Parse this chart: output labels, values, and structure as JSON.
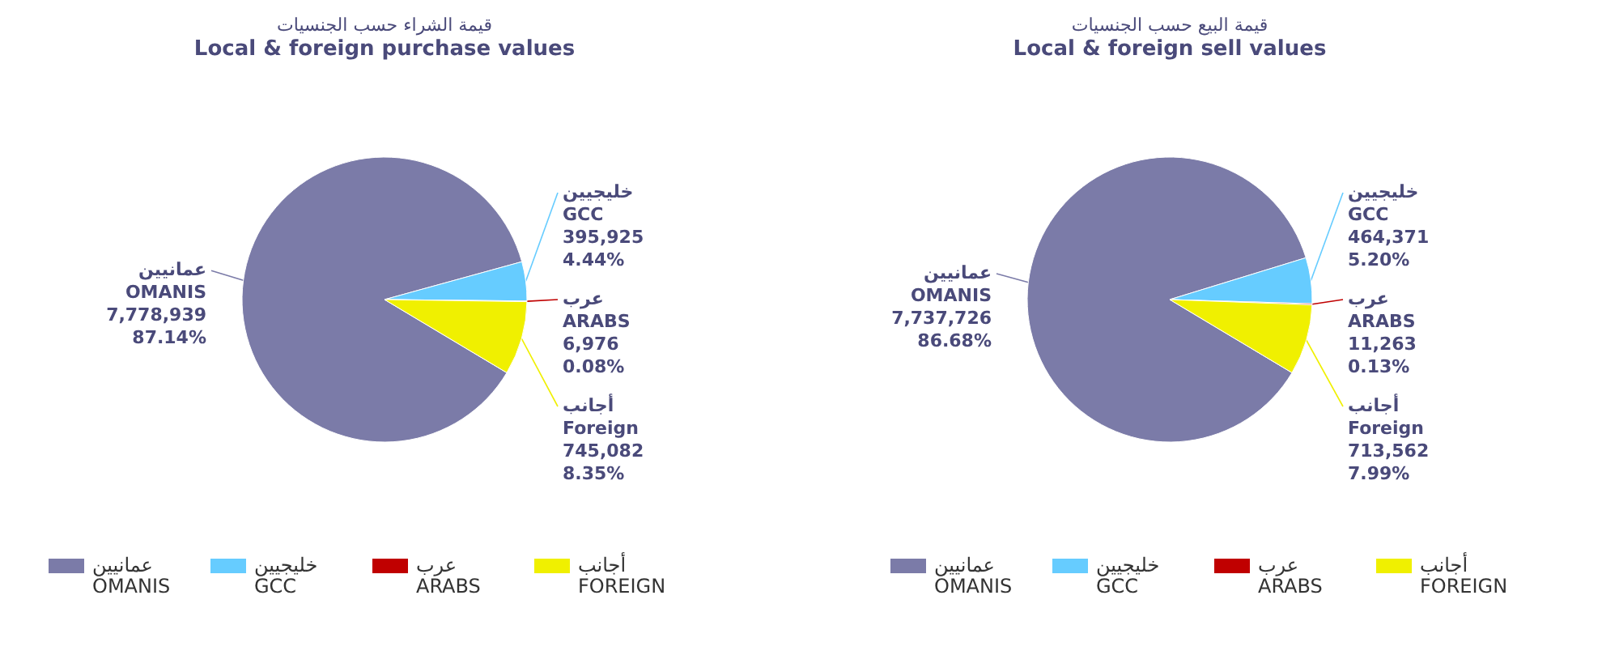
{
  "chart_data": [
    {
      "type": "pie",
      "title": "قيمة الشراء حسب الجنسيات",
      "subtitle": "Local & foreign purchase values",
      "categories": [
        "عمانيين\nOMANIS",
        "خليجيين\nGCC",
        "عرب\nARABS",
        "أجانب\nFOREIGN"
      ],
      "values": [
        7778939,
        395925,
        6976,
        745082
      ],
      "colors": [
        "#7b7ba8",
        "#66ccff",
        "#c00000",
        "#f0f000"
      ],
      "value_labels": [
        "عمانيين\nOMANIS\n7,778,939\n87.14%",
        "خليجيين\nGCC\n395,925\n4.44%",
        "عرب\nARABS\n6,976\n0.08%",
        "أجانب\nForeign\n745,082\n8.35%"
      ],
      "legend": "bottom left"
    },
    {
      "type": "pie",
      "title": "قيمة البيع حسب الجنسيات",
      "subtitle": "Local & foreign sell values",
      "categories": [
        "عمانيين\nOMANIS",
        "خليجيين\nGCC",
        "عرب\nARABS",
        "أجانب\nFOREIGN"
      ],
      "values": [
        7737726,
        464371,
        11263,
        713562
      ],
      "colors": [
        "#7b7ba8",
        "#66ccff",
        "#c00000",
        "#f0f000"
      ],
      "value_labels": [
        "عمانيين\nOMANIS\n7,737,726\n86.68%",
        "خليجيين\nGCC\n464,371\n5.20%",
        "عرب\nARABS\n11,263\n0.13%",
        "أجانب\nForeign\n713,562\n7.99%"
      ],
      "legend": "bottom right"
    }
  ]
}
